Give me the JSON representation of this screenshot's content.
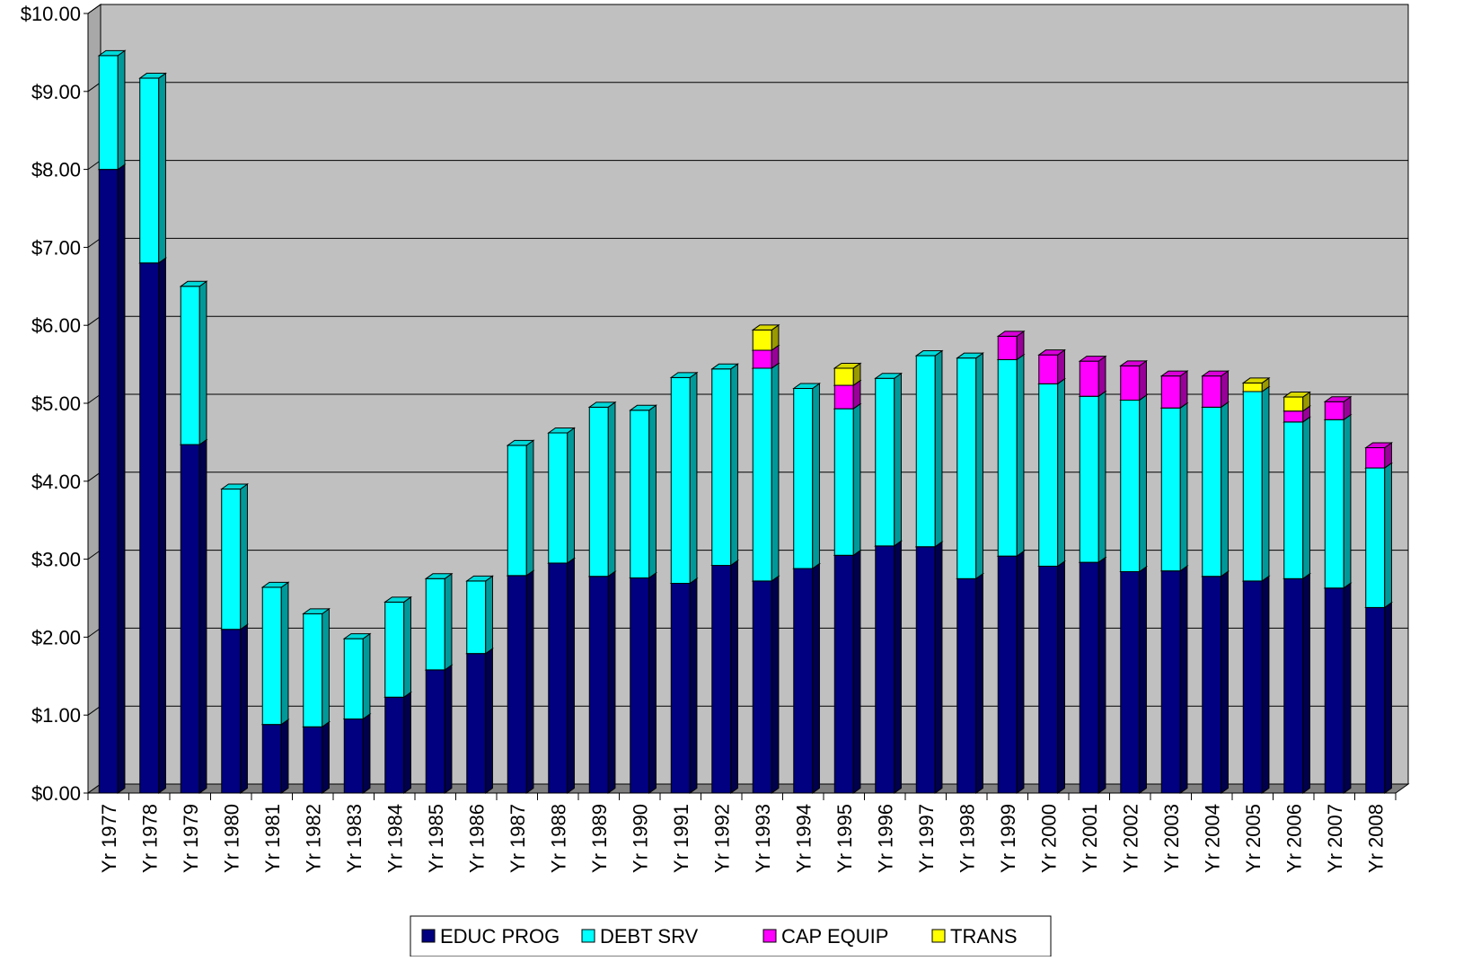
{
  "chart_data": {
    "type": "bar",
    "stacked": true,
    "three_d": true,
    "categories": [
      "Yr 1977",
      "Yr 1978",
      "Yr 1979",
      "Yr 1980",
      "Yr 1981",
      "Yr 1982",
      "Yr 1983",
      "Yr 1984",
      "Yr 1985",
      "Yr 1986",
      "Yr 1987",
      "Yr 1988",
      "Yr 1989",
      "Yr 1990",
      "Yr 1991",
      "Yr 1992",
      "Yr 1993",
      "Yr 1994",
      "Yr 1995",
      "Yr 1996",
      "Yr 1997",
      "Yr 1998",
      "Yr 1999",
      "Yr 2000",
      "Yr 2001",
      "Yr 2002",
      "Yr 2003",
      "Yr 2004",
      "Yr 2005",
      "Yr 2006",
      "Yr 2007",
      "Yr 2008"
    ],
    "series": [
      {
        "name": "EDUC PROG",
        "color": "#000080",
        "values": [
          8.0,
          6.8,
          4.47,
          2.1,
          0.88,
          0.85,
          0.95,
          1.23,
          1.58,
          1.79,
          2.79,
          2.95,
          2.78,
          2.76,
          2.69,
          2.92,
          2.72,
          2.88,
          3.05,
          3.17,
          3.16,
          2.75,
          3.04,
          2.91,
          2.96,
          2.84,
          2.85,
          2.78,
          2.72,
          2.75,
          2.63,
          2.38
        ]
      },
      {
        "name": "DEBT SRV",
        "color": "#00ffff",
        "values": [
          1.46,
          2.37,
          2.03,
          1.8,
          1.76,
          1.45,
          1.03,
          1.22,
          1.17,
          0.93,
          1.67,
          1.67,
          2.17,
          2.15,
          2.64,
          2.52,
          2.73,
          2.31,
          1.88,
          2.15,
          2.45,
          2.83,
          2.52,
          2.34,
          2.13,
          2.2,
          2.09,
          2.17,
          2.43,
          2.01,
          2.16,
          1.79
        ]
      },
      {
        "name": "CAP EQUIP",
        "color": "#ff00ff",
        "values": [
          0,
          0,
          0,
          0,
          0,
          0,
          0,
          0,
          0,
          0,
          0,
          0,
          0,
          0,
          0,
          0,
          0.23,
          0,
          0.3,
          0,
          0,
          0,
          0.3,
          0.37,
          0.45,
          0.44,
          0.41,
          0.4,
          0,
          0.14,
          0.23,
          0.26
        ]
      },
      {
        "name": "TRANS",
        "color": "#ffff00",
        "values": [
          0,
          0,
          0,
          0,
          0,
          0,
          0,
          0,
          0,
          0,
          0,
          0,
          0,
          0,
          0,
          0,
          0.26,
          0,
          0.22,
          0,
          0,
          0,
          0,
          0,
          0,
          0,
          0,
          0,
          0.11,
          0.18,
          0,
          0
        ]
      }
    ],
    "ylim": [
      0,
      10
    ],
    "y_ticks": [
      "$0.00",
      "$1.00",
      "$2.00",
      "$3.00",
      "$4.00",
      "$5.00",
      "$6.00",
      "$7.00",
      "$8.00",
      "$9.00",
      "$10.00"
    ],
    "grid": true,
    "plot_background": "#c0c0c0",
    "floor_color": "#808080",
    "legend_position": "bottom-center"
  }
}
